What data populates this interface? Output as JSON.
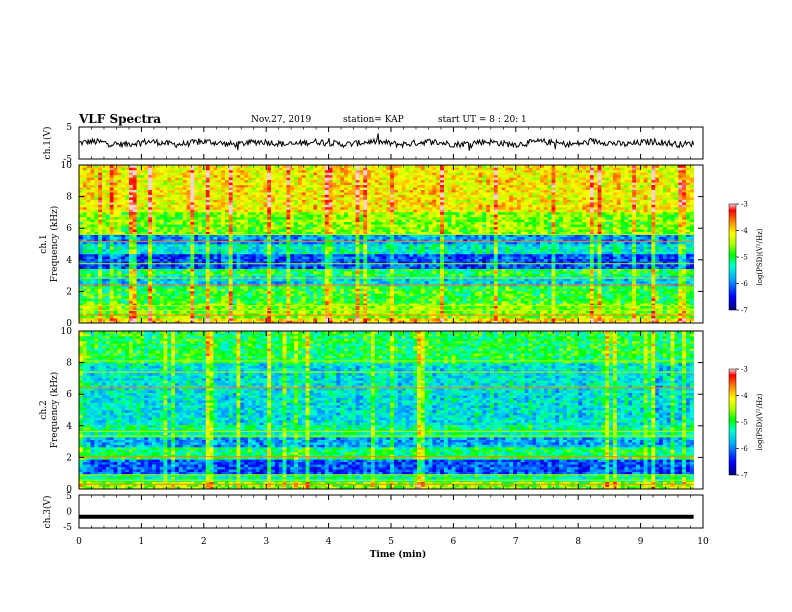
{
  "header": {
    "title": "VLF Spectra",
    "date": "Nov.27, 2019",
    "station": "station= KAP",
    "start": "start  UT =  8 : 20: 1"
  },
  "chart_data": [
    {
      "type": "line",
      "panel": "ch1-waveform",
      "ylabel": "ch.1(V)",
      "ylim": [
        -5,
        5
      ],
      "yticks": [
        "5",
        "-5"
      ],
      "xlim": [
        0,
        10
      ],
      "x_range_data": [
        0,
        9.85
      ],
      "approx_level": 0.0,
      "approx_amplitude": 1.0
    },
    {
      "type": "heatmap",
      "panel": "ch1-spectrogram",
      "ylabel": "ch.1\nFrequency (kHz)",
      "ylim": [
        0,
        10
      ],
      "yticks": [
        "0",
        "2",
        "4",
        "6",
        "8",
        "10"
      ],
      "xlim": [
        0,
        10
      ],
      "x_range_data": [
        0,
        9.85
      ],
      "colorbar": {
        "label": "log(PSD)(V²/Hz)",
        "min": -7,
        "max": -3,
        "ticks": [
          "-3",
          "-4",
          "-5",
          "-6",
          "-7"
        ]
      },
      "bands_log_psd": [
        {
          "f": [
            0.0,
            0.3
          ],
          "v": -4.0
        },
        {
          "f": [
            0.3,
            1.2
          ],
          "v": -4.6
        },
        {
          "f": [
            1.2,
            2.4
          ],
          "v": -4.9
        },
        {
          "f": [
            2.4,
            2.9
          ],
          "v": -5.6
        },
        {
          "f": [
            2.9,
            3.4
          ],
          "v": -5.0
        },
        {
          "f": [
            3.4,
            4.4
          ],
          "v": -6.2
        },
        {
          "f": [
            4.4,
            5.0
          ],
          "v": -5.4
        },
        {
          "f": [
            5.0,
            5.6
          ],
          "v": -5.9
        },
        {
          "f": [
            5.6,
            7.0
          ],
          "v": -4.6
        },
        {
          "f": [
            7.0,
            10.0
          ],
          "v": -4.1
        }
      ]
    },
    {
      "type": "heatmap",
      "panel": "ch2-spectrogram",
      "ylabel": "ch.2\nFrequency (kHz)",
      "ylim": [
        0,
        10
      ],
      "yticks": [
        "0",
        "2",
        "4",
        "6",
        "8",
        "10"
      ],
      "xlim": [
        0,
        10
      ],
      "x_range_data": [
        0,
        9.85
      ],
      "colorbar": {
        "label": "log(PSD)(V²/Hz)",
        "min": -7,
        "max": -3,
        "ticks": [
          "-3",
          "-4",
          "-5",
          "-6",
          "-7"
        ]
      },
      "bands_log_psd": [
        {
          "f": [
            0.0,
            0.5
          ],
          "v": -4.6
        },
        {
          "f": [
            0.5,
            1.0
          ],
          "v": -5.2
        },
        {
          "f": [
            1.0,
            1.9
          ],
          "v": -6.2
        },
        {
          "f": [
            1.9,
            2.6
          ],
          "v": -5.1
        },
        {
          "f": [
            2.6,
            3.3
          ],
          "v": -5.8
        },
        {
          "f": [
            3.3,
            4.0
          ],
          "v": -5.2
        },
        {
          "f": [
            4.0,
            8.0
          ],
          "v": -5.5
        },
        {
          "f": [
            8.0,
            10.0
          ],
          "v": -5.0
        }
      ]
    },
    {
      "type": "line",
      "panel": "ch3-waveform",
      "ylabel": "ch.3(V)",
      "ylim": [
        -5,
        5
      ],
      "yticks": [
        "5",
        "0",
        "-5"
      ],
      "xlim": [
        0,
        10
      ],
      "x_range_data": [
        0,
        9.85
      ],
      "approx_level": -1.6
    }
  ],
  "xaxis": {
    "label": "Time (min)",
    "ticks": [
      "0",
      "1",
      "2",
      "3",
      "4",
      "5",
      "6",
      "7",
      "8",
      "9",
      "10"
    ]
  },
  "colors": {
    "line": "#000000",
    "colormap": [
      "#000080",
      "#0000ff",
      "#00b0ff",
      "#00ffcc",
      "#00ff00",
      "#aaff00",
      "#ffff00",
      "#ff8000",
      "#ff0000",
      "#ffd0d0"
    ]
  }
}
